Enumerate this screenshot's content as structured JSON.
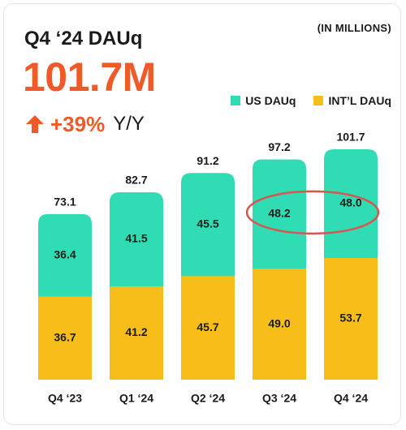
{
  "header": {
    "title": "Q4 ‘24 DAUq",
    "units": "(IN MILLIONS)",
    "headline_value": "101.7M",
    "yoy_change": "+39%",
    "yoy_suffix": "Y/Y"
  },
  "colors": {
    "us": "#2fdcb4",
    "intl": "#f7be1a",
    "accent": "#f05a28",
    "highlight": "#d95650"
  },
  "chart_data": {
    "type": "bar",
    "stacked": true,
    "categories": [
      "Q4 ‘23",
      "Q1 ‘24",
      "Q2 ‘24",
      "Q3 ‘24",
      "Q4 ‘24"
    ],
    "series": [
      {
        "name": "INT’L DAUq",
        "values": [
          36.7,
          41.2,
          45.7,
          49.0,
          53.7
        ]
      },
      {
        "name": "US DAUq",
        "values": [
          36.4,
          41.5,
          45.5,
          48.2,
          48.0
        ]
      }
    ],
    "totals": [
      73.1,
      82.7,
      91.2,
      97.2,
      101.7
    ],
    "segment_labels": {
      "intl": [
        "36.7",
        "41.2",
        "45.7",
        "49.0",
        "53.7"
      ],
      "us": [
        "36.4",
        "41.5",
        "45.5",
        "48.2",
        "48.0"
      ]
    },
    "total_labels": [
      "73.1",
      "82.7",
      "91.2",
      "97.2",
      "101.7"
    ],
    "legend": [
      "US DAUq",
      "INT’L DAUq"
    ],
    "legend_position": "top-right",
    "highlighted_segments": [
      "US DAUq Q3 ‘24",
      "US DAUq Q4 ‘24"
    ],
    "ylim": [
      0,
      110
    ],
    "grid": false
  }
}
